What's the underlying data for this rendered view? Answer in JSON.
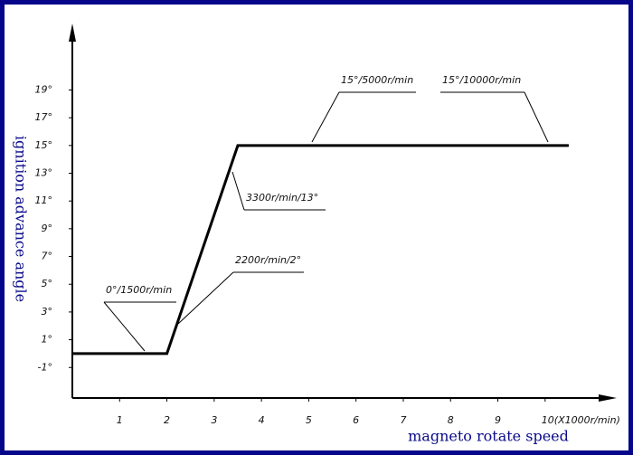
{
  "chart_data": {
    "type": "line",
    "x_label": "magneto rotate speed",
    "y_label": "ignition advance angle",
    "x": [
      0,
      2,
      3.5,
      10.5
    ],
    "values": [
      0,
      0,
      15,
      15
    ],
    "color": "#000000",
    "xlim": [
      0,
      11.4
    ],
    "ylim": [
      -3.2,
      23.4
    ],
    "xticks": [
      1,
      2,
      3,
      4,
      5,
      6,
      7,
      8,
      9,
      {
        "value": 10,
        "label": "10(X1000r/min)"
      }
    ],
    "yticks": [
      {
        "value": -1,
        "label": "-1°"
      },
      {
        "value": 1,
        "label": "1°"
      },
      {
        "value": 3,
        "label": "3°"
      },
      {
        "value": 5,
        "label": "5°"
      },
      {
        "value": 7,
        "label": "7°"
      },
      {
        "value": 9,
        "label": "9°"
      },
      {
        "value": 11,
        "label": "11°"
      },
      {
        "value": 13,
        "label": "13°"
      },
      {
        "value": 15,
        "label": "15°"
      },
      {
        "value": 17,
        "label": "17°"
      },
      {
        "value": 19,
        "label": "19°"
      }
    ],
    "annotations": [
      "0°/1500r/min",
      "2200r/min/2°",
      "3300r/min/13°",
      "15°/5000r/min",
      "15°/10000r/min"
    ]
  }
}
